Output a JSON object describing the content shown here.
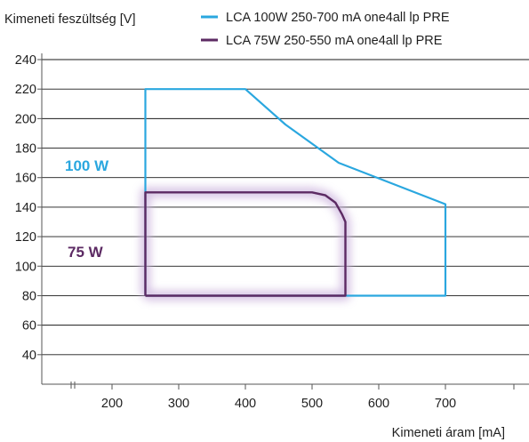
{
  "chart_data": {
    "type": "line",
    "ylabel": "Kimeneti feszültség [V]",
    "xlabel": "Kimeneti áram [mA]",
    "xlim": [
      150,
      740
    ],
    "ylim": [
      20,
      240
    ],
    "x_ticks": [
      200,
      300,
      400,
      500,
      600,
      700
    ],
    "y_ticks": [
      40,
      60,
      80,
      100,
      120,
      140,
      160,
      180,
      200,
      220,
      240
    ],
    "grid": "horizontal",
    "legend_position": "top-right",
    "series": [
      {
        "name": "LCA 100W 250-700 mA one4all lp PRE",
        "color": "#2aa7df",
        "label": "100 W",
        "points": [
          [
            250,
            80
          ],
          [
            250,
            220
          ],
          [
            400,
            220
          ],
          [
            460,
            196
          ],
          [
            540,
            170
          ],
          [
            700,
            142
          ],
          [
            700,
            80
          ],
          [
            250,
            80
          ]
        ]
      },
      {
        "name": "LCA 75W 250-550 mA one4all lp PRE",
        "color": "#5c2a63",
        "label": "75 W",
        "points": [
          [
            250,
            80
          ],
          [
            250,
            150
          ],
          [
            500,
            150
          ],
          [
            520,
            148
          ],
          [
            535,
            143
          ],
          [
            545,
            135
          ],
          [
            550,
            130
          ],
          [
            550,
            80
          ],
          [
            250,
            80
          ]
        ]
      }
    ]
  }
}
